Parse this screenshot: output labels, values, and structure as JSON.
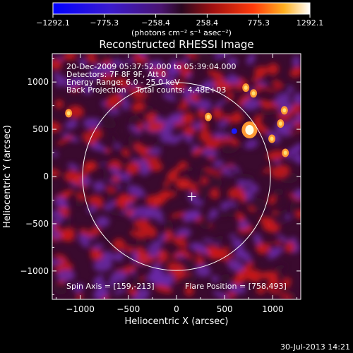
{
  "chart_data": {
    "type": "heatmap",
    "title": "Reconstructed RHESSI Image",
    "xlabel": "Heliocentric X (arcsec)",
    "ylabel": "Heliocentric Y (arcsec)",
    "xlim": [
      -1290,
      1290
    ],
    "ylim": [
      -1300,
      1300
    ],
    "x_ticks": [
      -1000,
      -500,
      0,
      500,
      1000
    ],
    "y_ticks": [
      -1000,
      -500,
      0,
      500,
      1000
    ],
    "x_tick_labels": [
      "−1000",
      "−500",
      "0",
      "500",
      "1000"
    ],
    "y_tick_labels": [
      "−1000",
      "−500",
      "0",
      "500",
      "1000"
    ],
    "colorbar": {
      "range": [
        -1292.1,
        1292.1
      ],
      "ticks": [
        -1292.1,
        -775.3,
        -258.4,
        258.4,
        775.3,
        1292.1
      ],
      "tick_labels": [
        "−1292.1",
        "−775.3",
        "−258.4",
        "258.4",
        "775.3",
        "1292.1"
      ],
      "unit": "(photons cm⁻² s⁻¹ asec⁻²)"
    },
    "info_lines": [
      "20-Dec-2009 05:37:52.000 to 05:39:04.000",
      "Detectors: 7F 8F 9F, Att 0",
      "Energy Range: 6.0 - 25.0 keV",
      "Back Projection    Total counts: 4.48E+03"
    ],
    "spin_axis": "Spin Axis = [159,-213]",
    "flare_position": "Flare Position = [758,493]",
    "solar_limb_radius": 975,
    "flare_xy": [
      758,
      493
    ],
    "spin_axis_xy": [
      159,
      -213
    ],
    "grid": false
  },
  "footer": {
    "timestamp": "30-Jul-2013 14:21"
  },
  "colors": {
    "background": "#000000",
    "map_dark": "#3a0a2e",
    "map_purple": "#6b28a8",
    "map_red": "#cc1a1a",
    "map_hot": "#ff9933",
    "map_white": "#ffffe6",
    "map_blue": "#1a1aff"
  }
}
